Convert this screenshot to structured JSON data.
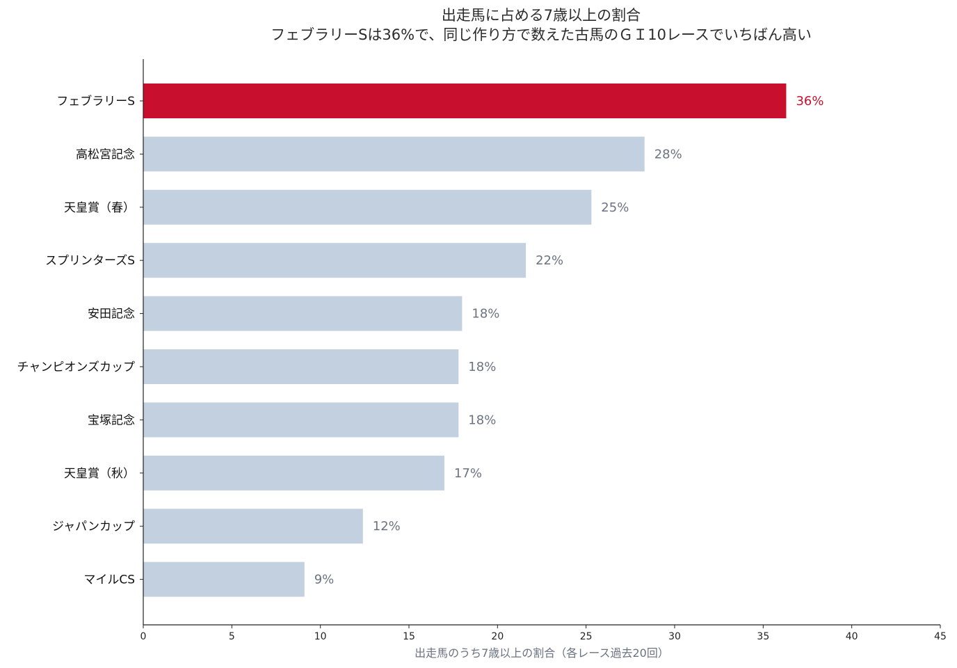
{
  "chart_data": {
    "type": "bar",
    "orientation": "horizontal",
    "title": "出走馬に占める7歳以上の割合",
    "subtitle": "フェブラリーSは36%で、同じ作り方で数えた古馬のＧＩ10レースでいちばん高い",
    "xlabel": "出走馬のうち7歳以上の割合（各レース過去20回）",
    "ylabel": "",
    "xlim": [
      0,
      45
    ],
    "xticks": [
      "0",
      "5",
      "10",
      "15",
      "20",
      "25",
      "30",
      "35",
      "40",
      "45"
    ],
    "grid": false,
    "categories": [
      "フェブラリーS",
      "高松宮記念",
      "天皇賞（春）",
      "スプリンターズS",
      "安田記念",
      "チャンピオンズカップ",
      "宝塚記念",
      "天皇賞（秋）",
      "ジャパンカップ",
      "マイルCS"
    ],
    "values": [
      36.3,
      28.3,
      25.3,
      21.6,
      18.0,
      17.8,
      17.8,
      17.0,
      12.4,
      9.1
    ],
    "data_labels": [
      "36%",
      "28%",
      "25%",
      "22%",
      "18%",
      "18%",
      "18%",
      "17%",
      "12%",
      "9%"
    ],
    "highlight_index": 0,
    "colors": {
      "highlight": "#c8102e",
      "bar": "#c3d0e0",
      "label": "#6b7280",
      "axis": "#222222"
    }
  }
}
